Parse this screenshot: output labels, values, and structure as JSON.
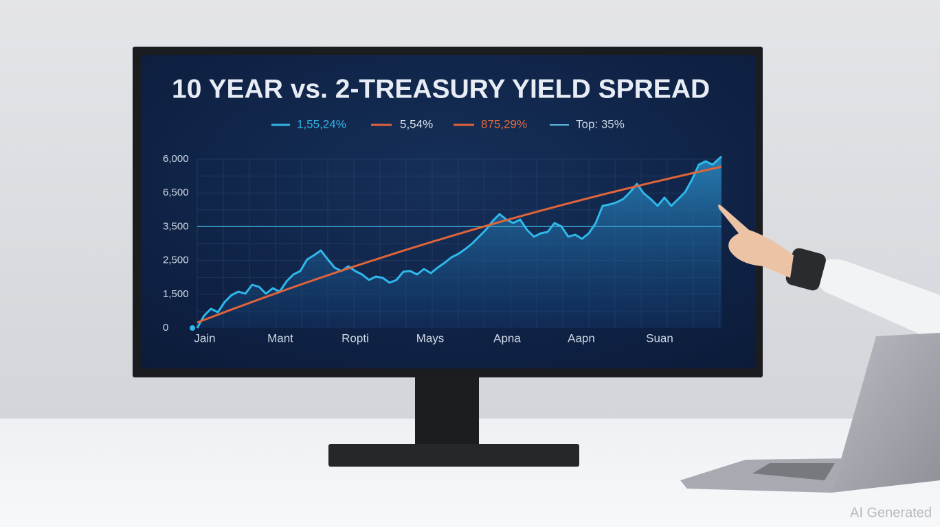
{
  "screen": {
    "title": "10 YEAR vs. 2-TREASURY YIELD SPREAD",
    "legend": [
      "1,55,24%",
      "5,54%",
      "875,29%",
      "Top: 35%"
    ],
    "y_labels": [
      "6,000",
      "6,500",
      "3,500",
      "2,500",
      "1,500",
      "0"
    ],
    "x_labels": [
      "Jain",
      "Mant",
      "Ropti",
      "Mays",
      "Apna",
      "Aapn",
      "Suan"
    ]
  },
  "watermark": "AI Generated"
}
